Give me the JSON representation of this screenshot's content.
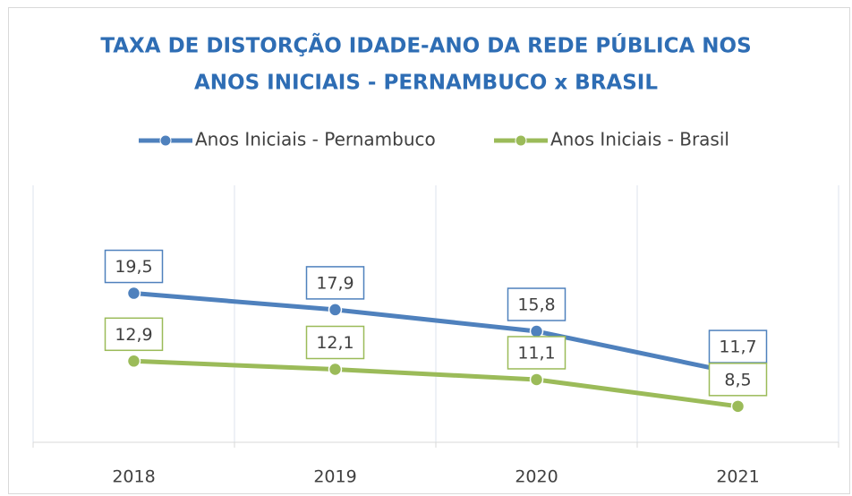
{
  "chart_data": {
    "type": "line",
    "title": [
      "TAXA DE DISTORÇÃO IDADE-ANO DA REDE PÚBLICA NOS",
      "ANOS INICIAIS - PERNAMBUCO x BRASIL"
    ],
    "categories": [
      "2018",
      "2019",
      "2020",
      "2021"
    ],
    "series": [
      {
        "name": "Anos Iniciais - Pernambuco",
        "color": "#4f81bd",
        "values": [
          19.5,
          17.9,
          15.8,
          11.7
        ],
        "value_labels": [
          "19,5",
          "17,9",
          "15,8",
          "11,7"
        ]
      },
      {
        "name": "Anos Iniciais - Brasil",
        "color": "#9bbb59",
        "values": [
          12.9,
          12.1,
          11.1,
          8.5
        ],
        "value_labels": [
          "12,9",
          "12,1",
          "11,1",
          "8,5"
        ]
      }
    ],
    "ylim": [
      5,
      30
    ],
    "legend": "top"
  }
}
